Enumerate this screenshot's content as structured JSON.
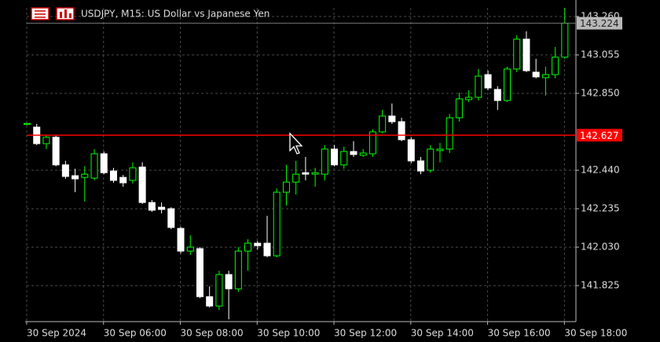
{
  "chart_data": {
    "type": "candlestick",
    "title": "USDJPY, M15:  US Dollar vs Japanese Yen",
    "open": [
      142.685,
      142.67,
      142.582,
      142.616,
      142.469,
      142.411,
      142.402,
      142.398,
      142.528,
      142.436,
      142.402,
      142.386,
      142.457,
      142.268,
      142.243,
      142.235,
      142.13,
      142.009,
      142.022,
      141.766,
      141.716,
      141.884,
      141.808,
      142.009,
      142.051,
      142.051,
      141.984,
      142.323,
      142.377,
      142.427,
      142.419,
      142.419,
      142.553,
      142.469,
      142.54,
      142.52,
      142.528,
      142.645,
      142.729,
      142.699,
      142.603,
      142.49,
      142.44,
      142.545,
      142.553,
      142.72,
      142.817,
      142.829,
      142.95,
      142.871,
      142.812,
      142.98,
      143.139,
      142.963,
      142.934,
      142.95,
      143.043
    ],
    "high": [
      142.692,
      142.687,
      142.628,
      142.628,
      142.49,
      142.448,
      142.461,
      142.553,
      142.54,
      142.453,
      142.415,
      142.482,
      142.482,
      142.281,
      142.268,
      142.243,
      142.139,
      142.093,
      142.03,
      141.821,
      141.904,
      141.904,
      142.03,
      142.072,
      142.063,
      142.197,
      142.343,
      142.469,
      142.49,
      142.511,
      142.453,
      142.574,
      142.574,
      142.566,
      142.595,
      142.553,
      142.658,
      142.762,
      142.796,
      142.72,
      142.616,
      142.511,
      142.574,
      142.586,
      142.741,
      142.854,
      142.867,
      142.98,
      142.971,
      142.888,
      142.992,
      143.16,
      143.181,
      143.034,
      142.992,
      143.097,
      143.306
    ],
    "low": [
      142.68,
      142.574,
      142.553,
      142.461,
      142.394,
      142.323,
      142.273,
      142.386,
      142.419,
      142.373,
      142.352,
      142.369,
      142.26,
      142.218,
      142.21,
      142.126,
      141.997,
      141.988,
      141.758,
      141.708,
      141.695,
      141.645,
      141.792,
      141.904,
      142.017,
      141.976,
      141.976,
      142.252,
      142.31,
      142.386,
      142.352,
      142.386,
      142.461,
      142.448,
      142.511,
      142.511,
      142.511,
      142.637,
      142.687,
      142.595,
      142.478,
      142.419,
      142.427,
      142.482,
      142.532,
      142.699,
      142.804,
      142.812,
      142.867,
      142.762,
      142.804,
      142.963,
      142.963,
      142.93,
      142.838,
      142.93,
      143.034
    ],
    "close": [
      142.69,
      142.582,
      142.616,
      142.469,
      142.407,
      142.394,
      142.419,
      142.528,
      142.427,
      142.386,
      142.373,
      142.453,
      142.268,
      142.227,
      142.231,
      142.135,
      142.009,
      142.03,
      141.766,
      141.716,
      141.884,
      141.808,
      142.009,
      142.051,
      142.038,
      141.984,
      142.323,
      142.377,
      142.419,
      142.419,
      142.427,
      142.553,
      142.469,
      142.54,
      142.524,
      142.532,
      142.645,
      142.729,
      142.699,
      142.603,
      142.49,
      142.436,
      142.553,
      142.553,
      142.72,
      142.821,
      142.829,
      142.942,
      142.879,
      142.812,
      142.98,
      143.139,
      142.971,
      142.938,
      142.95,
      143.043,
      143.224
    ],
    "bull_color": "#00ff00",
    "bear_color": "#ffffff",
    "xlim": [
      0,
      57.2
    ],
    "xticks": [
      {
        "value": 0,
        "label": "30 Sep 2024"
      },
      {
        "value": 8,
        "label": "30 Sep 06:00"
      },
      {
        "value": 16,
        "label": "30 Sep 08:00"
      },
      {
        "value": 24,
        "label": "30 Sep 10:00"
      },
      {
        "value": 32,
        "label": "30 Sep 12:00"
      },
      {
        "value": 40,
        "label": "30 Sep 14:00"
      },
      {
        "value": 48,
        "label": "30 Sep 16:00"
      },
      {
        "value": 56,
        "label": "30 Sep 18:00"
      }
    ],
    "ylim": [
      141.633,
      143.306
    ],
    "yticks": [
      {
        "value": 141.825,
        "label": "141.825"
      },
      {
        "value": 142.03,
        "label": "142.030"
      },
      {
        "value": 142.235,
        "label": "142.235"
      },
      {
        "value": 142.44,
        "label": "142.440"
      },
      {
        "value": 142.85,
        "label": "142.850"
      },
      {
        "value": 143.055,
        "label": "143.055"
      },
      {
        "value": 143.26,
        "label": "143.260"
      }
    ],
    "grid": true,
    "hline": {
      "value": 142.627,
      "label": "142.627",
      "color": "#ff0000"
    },
    "current_price": {
      "value": 143.224,
      "label": "143.224"
    }
  }
}
